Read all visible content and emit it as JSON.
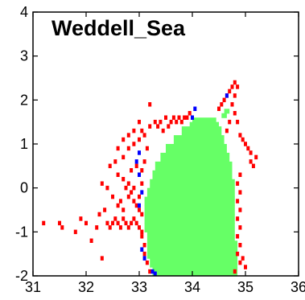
{
  "chart_data": {
    "type": "heatmap",
    "title": "Weddell_Sea",
    "xlabel": "",
    "ylabel": "",
    "xlim": [
      31,
      36
    ],
    "ylim": [
      -2,
      4
    ],
    "x_ticks": [
      "31",
      "32",
      "33",
      "34",
      "35",
      "36"
    ],
    "y_ticks": [
      "-2",
      "-1",
      "0",
      "1",
      "2",
      "3",
      "4"
    ],
    "grid": false,
    "legend": "none",
    "colors": {
      "background": "#ffffff",
      "green": "#66ff66",
      "red": "#ff0000",
      "blue": "#0000ff",
      "axis": "#000000"
    },
    "cell_size": {
      "x": 0.05,
      "y": 0.1
    },
    "green_region": {
      "description_units": "salinity vs temperature envelope, rows of [y_bottom, y_top, x_left, x_right]",
      "rows": [
        [
          -2.0,
          -1.8,
          33.25,
          34.85
        ],
        [
          -1.8,
          -1.6,
          33.2,
          34.85
        ],
        [
          -1.6,
          -1.4,
          33.15,
          34.85
        ],
        [
          -1.4,
          -1.2,
          33.15,
          34.85
        ],
        [
          -1.2,
          -1.0,
          33.15,
          34.8
        ],
        [
          -1.0,
          -0.8,
          33.1,
          34.8
        ],
        [
          -0.8,
          -0.6,
          33.1,
          34.8
        ],
        [
          -0.6,
          -0.4,
          33.1,
          34.8
        ],
        [
          -0.4,
          -0.2,
          33.1,
          34.8
        ],
        [
          -0.2,
          0.0,
          33.15,
          34.8
        ],
        [
          0.0,
          0.2,
          33.2,
          34.8
        ],
        [
          0.2,
          0.4,
          33.25,
          34.75
        ],
        [
          0.4,
          0.6,
          33.3,
          34.75
        ],
        [
          0.6,
          0.8,
          33.4,
          34.7
        ],
        [
          0.8,
          1.0,
          33.5,
          34.65
        ],
        [
          1.0,
          1.2,
          33.65,
          34.6
        ],
        [
          1.2,
          1.4,
          33.8,
          34.55
        ],
        [
          1.4,
          1.5,
          33.95,
          34.5
        ],
        [
          1.5,
          1.6,
          34.0,
          34.45
        ],
        [
          1.6,
          1.7,
          34.55,
          34.65
        ],
        [
          1.7,
          1.8,
          34.6,
          34.7
        ]
      ]
    },
    "red_points": [
      [
        31.2,
        -0.8
      ],
      [
        31.5,
        -0.8
      ],
      [
        31.55,
        -0.9
      ],
      [
        31.8,
        -1.0
      ],
      [
        31.9,
        -0.7
      ],
      [
        32.0,
        -0.8
      ],
      [
        32.1,
        -1.2
      ],
      [
        32.2,
        -0.9
      ],
      [
        32.25,
        -0.6
      ],
      [
        32.3,
        -1.6
      ],
      [
        32.35,
        -0.5
      ],
      [
        32.4,
        -0.8
      ],
      [
        32.45,
        -0.9
      ],
      [
        32.5,
        -0.8
      ],
      [
        32.55,
        -0.7
      ],
      [
        32.6,
        -0.8
      ],
      [
        32.65,
        -0.9
      ],
      [
        32.7,
        -0.7
      ],
      [
        32.75,
        -0.8
      ],
      [
        32.8,
        -0.9
      ],
      [
        32.85,
        -0.8
      ],
      [
        32.9,
        -0.7
      ],
      [
        32.95,
        -0.8
      ],
      [
        33.0,
        -0.9
      ],
      [
        32.6,
        0.3
      ],
      [
        32.7,
        0.2
      ],
      [
        32.8,
        0.1
      ],
      [
        32.9,
        0.0
      ],
      [
        32.85,
        0.4
      ],
      [
        32.95,
        0.5
      ],
      [
        32.7,
        0.7
      ],
      [
        32.8,
        0.9
      ],
      [
        32.85,
        -0.1
      ],
      [
        32.9,
        -0.3
      ],
      [
        32.95,
        -0.4
      ],
      [
        33.0,
        -0.2
      ],
      [
        32.5,
        -0.2
      ],
      [
        32.6,
        -0.4
      ],
      [
        32.7,
        -0.5
      ],
      [
        32.65,
        -0.3
      ],
      [
        32.75,
        0.0
      ],
      [
        32.8,
        -0.2
      ],
      [
        32.4,
        0.0
      ],
      [
        32.3,
        0.1
      ],
      [
        32.45,
        0.5
      ],
      [
        32.55,
        0.6
      ],
      [
        32.6,
        0.9
      ],
      [
        32.7,
        1.1
      ],
      [
        32.8,
        1.2
      ],
      [
        32.9,
        1.0
      ],
      [
        33.0,
        1.1
      ],
      [
        33.05,
        1.3
      ],
      [
        33.1,
        1.2
      ],
      [
        33.2,
        1.4
      ],
      [
        33.3,
        1.5
      ],
      [
        33.35,
        1.4
      ],
      [
        33.4,
        1.5
      ],
      [
        33.5,
        1.6
      ],
      [
        33.45,
        1.3
      ],
      [
        33.55,
        1.4
      ],
      [
        33.6,
        1.5
      ],
      [
        33.65,
        1.6
      ],
      [
        33.7,
        1.5
      ],
      [
        33.75,
        1.6
      ],
      [
        33.8,
        1.5
      ],
      [
        33.85,
        1.6
      ],
      [
        33.9,
        1.6
      ],
      [
        33.95,
        1.7
      ],
      [
        33.2,
        1.9
      ],
      [
        33.0,
        1.5
      ],
      [
        32.9,
        1.3
      ],
      [
        33.15,
        0.9
      ],
      [
        33.1,
        0.6
      ],
      [
        33.05,
        0.4
      ],
      [
        33.0,
        0.3
      ],
      [
        33.05,
        0.1
      ],
      [
        33.0,
        -0.5
      ],
      [
        33.05,
        -0.6
      ],
      [
        33.05,
        -1.0
      ],
      [
        33.05,
        -1.1
      ],
      [
        33.1,
        -1.3
      ],
      [
        33.1,
        -1.5
      ],
      [
        33.15,
        -1.7
      ],
      [
        33.2,
        -1.9
      ],
      [
        34.5,
        1.8
      ],
      [
        34.55,
        1.9
      ],
      [
        34.6,
        2.0
      ],
      [
        34.65,
        2.1
      ],
      [
        34.7,
        2.2
      ],
      [
        34.75,
        2.3
      ],
      [
        34.8,
        2.4
      ],
      [
        34.85,
        2.3
      ],
      [
        34.8,
        2.1
      ],
      [
        34.75,
        1.9
      ],
      [
        34.8,
        1.7
      ],
      [
        34.85,
        1.5
      ],
      [
        34.9,
        1.2
      ],
      [
        34.95,
        1.1
      ],
      [
        35.0,
        1.0
      ],
      [
        35.05,
        0.9
      ],
      [
        35.1,
        0.8
      ],
      [
        35.2,
        0.7
      ],
      [
        35.15,
        0.5
      ],
      [
        35.1,
        0.6
      ],
      [
        34.9,
        0.3
      ],
      [
        34.85,
        0.1
      ],
      [
        34.9,
        -0.1
      ],
      [
        34.85,
        -0.3
      ],
      [
        34.9,
        -0.5
      ],
      [
        34.85,
        -0.7
      ],
      [
        34.9,
        -0.9
      ],
      [
        34.85,
        -1.1
      ],
      [
        34.9,
        -1.3
      ],
      [
        34.85,
        -1.5
      ],
      [
        34.9,
        -1.7
      ],
      [
        35.0,
        -1.8
      ],
      [
        34.95,
        -1.6
      ],
      [
        34.8,
        -1.9
      ],
      [
        34.7,
        1.5
      ],
      [
        34.65,
        1.3
      ]
    ],
    "blue_points": [
      [
        34.05,
        1.8
      ],
      [
        34.0,
        1.6
      ],
      [
        34.65,
        2.1
      ],
      [
        33.0,
        0.8
      ],
      [
        32.95,
        0.6
      ],
      [
        33.0,
        0.3
      ],
      [
        33.05,
        -0.1
      ],
      [
        33.0,
        -0.4
      ],
      [
        33.05,
        -1.4
      ],
      [
        33.1,
        -1.6
      ],
      [
        33.25,
        -1.9
      ],
      [
        33.3,
        -1.95
      ]
    ]
  }
}
